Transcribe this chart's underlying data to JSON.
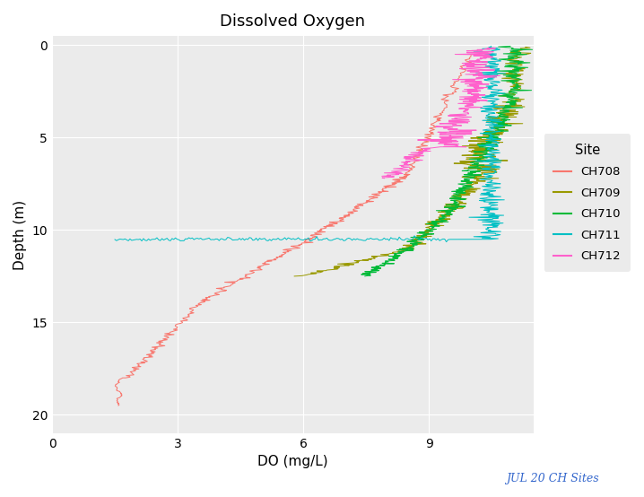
{
  "title": "Dissolved Oxygen",
  "xlabel": "DO (mg/L)",
  "ylabel": "Depth (m)",
  "annotation": "JUL 20 CH Sites",
  "xlim": [
    0,
    11.5
  ],
  "ylim": [
    21,
    -0.5
  ],
  "xticks": [
    0,
    3,
    6,
    9
  ],
  "yticks": [
    0,
    5,
    10,
    15,
    20
  ],
  "background_color": "#EBEBEB",
  "grid_color": "white",
  "colors": {
    "CH708": "#F8766D",
    "CH709": "#999900",
    "CH710": "#00BA38",
    "CH711": "#00BFC4",
    "CH712": "#FF61CC"
  }
}
